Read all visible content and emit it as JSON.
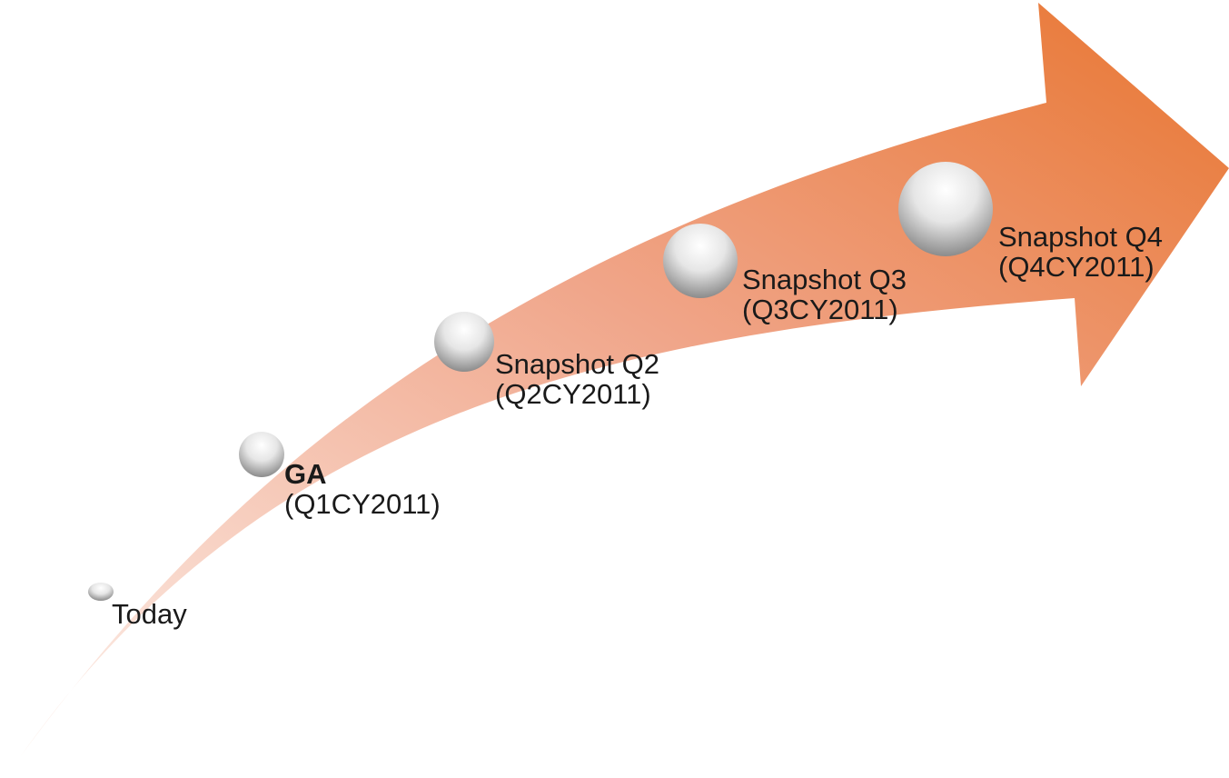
{
  "diagram": {
    "colors": {
      "arrow_start": "#fdf1ec",
      "arrow_mid": "#f0a589",
      "arrow_end": "#e87530",
      "bubble_light": "#ffffff",
      "bubble_dark": "#7f7f7f",
      "text": "#1a1a1a"
    },
    "milestones": [
      {
        "title": "Today",
        "subtitle": "",
        "bold": false
      },
      {
        "title": "GA",
        "subtitle": "(Q1CY2011)",
        "bold": true
      },
      {
        "title": "Snapshot Q2",
        "subtitle": "(Q2CY2011)",
        "bold": false
      },
      {
        "title": "Snapshot Q3",
        "subtitle": "(Q3CY2011)",
        "bold": false
      },
      {
        "title": "Snapshot Q4",
        "subtitle": "(Q4CY2011)",
        "bold": false
      }
    ]
  }
}
